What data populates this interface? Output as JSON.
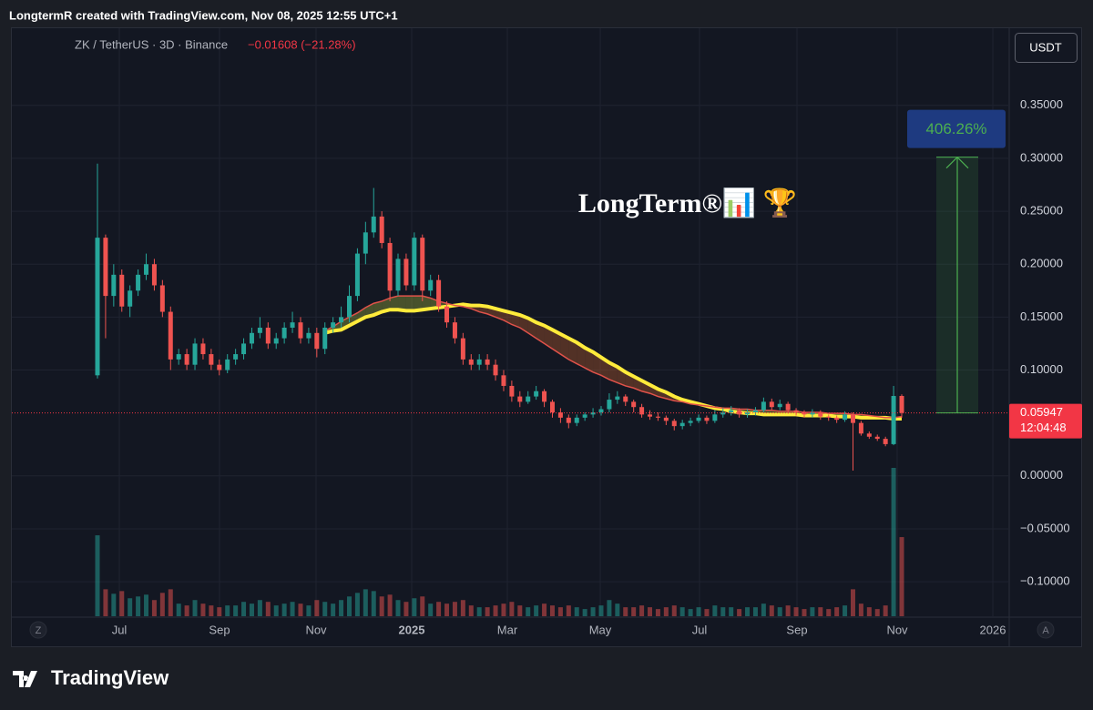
{
  "header": {
    "caption": "LongtermR created with TradingView.com, Nov 08, 2025 12:55 UTC+1"
  },
  "chart_data": {
    "type": "candlestick",
    "symbol": "ZK / TetherUS · 3D · Binance",
    "change": "−0.01608 (−21.28%)",
    "currency": "USDT",
    "watermark": "LongTerm®📊 🏆",
    "up_color": "#26a69a",
    "down_color": "#ef5350",
    "ohlc": [
      [
        0.095,
        0.295,
        0.092,
        0.225
      ],
      [
        0.225,
        0.228,
        0.13,
        0.17
      ],
      [
        0.17,
        0.2,
        0.16,
        0.19
      ],
      [
        0.19,
        0.195,
        0.155,
        0.16
      ],
      [
        0.16,
        0.18,
        0.15,
        0.175
      ],
      [
        0.175,
        0.195,
        0.17,
        0.19
      ],
      [
        0.19,
        0.21,
        0.185,
        0.2
      ],
      [
        0.2,
        0.205,
        0.175,
        0.18
      ],
      [
        0.18,
        0.185,
        0.15,
        0.155
      ],
      [
        0.155,
        0.16,
        0.1,
        0.11
      ],
      [
        0.11,
        0.12,
        0.105,
        0.115
      ],
      [
        0.115,
        0.12,
        0.1,
        0.105
      ],
      [
        0.105,
        0.13,
        0.1,
        0.125
      ],
      [
        0.125,
        0.13,
        0.11,
        0.115
      ],
      [
        0.115,
        0.12,
        0.1,
        0.105
      ],
      [
        0.105,
        0.11,
        0.095,
        0.1
      ],
      [
        0.1,
        0.115,
        0.097,
        0.11
      ],
      [
        0.11,
        0.12,
        0.105,
        0.115
      ],
      [
        0.115,
        0.13,
        0.11,
        0.125
      ],
      [
        0.125,
        0.14,
        0.12,
        0.135
      ],
      [
        0.135,
        0.15,
        0.13,
        0.14
      ],
      [
        0.14,
        0.145,
        0.12,
        0.125
      ],
      [
        0.125,
        0.135,
        0.12,
        0.13
      ],
      [
        0.13,
        0.145,
        0.125,
        0.14
      ],
      [
        0.14,
        0.155,
        0.135,
        0.145
      ],
      [
        0.145,
        0.15,
        0.125,
        0.13
      ],
      [
        0.13,
        0.14,
        0.125,
        0.135
      ],
      [
        0.135,
        0.14,
        0.112,
        0.12
      ],
      [
        0.12,
        0.145,
        0.115,
        0.14
      ],
      [
        0.14,
        0.15,
        0.135,
        0.145
      ],
      [
        0.145,
        0.16,
        0.14,
        0.15
      ],
      [
        0.15,
        0.18,
        0.145,
        0.17
      ],
      [
        0.17,
        0.215,
        0.165,
        0.21
      ],
      [
        0.21,
        0.24,
        0.2,
        0.23
      ],
      [
        0.23,
        0.272,
        0.225,
        0.245
      ],
      [
        0.245,
        0.25,
        0.215,
        0.22
      ],
      [
        0.22,
        0.225,
        0.165,
        0.175
      ],
      [
        0.175,
        0.21,
        0.17,
        0.205
      ],
      [
        0.205,
        0.21,
        0.175,
        0.18
      ],
      [
        0.18,
        0.23,
        0.175,
        0.225
      ],
      [
        0.225,
        0.228,
        0.165,
        0.175
      ],
      [
        0.175,
        0.19,
        0.17,
        0.185
      ],
      [
        0.185,
        0.19,
        0.155,
        0.16
      ],
      [
        0.16,
        0.165,
        0.14,
        0.145
      ],
      [
        0.145,
        0.15,
        0.125,
        0.13
      ],
      [
        0.13,
        0.135,
        0.105,
        0.11
      ],
      [
        0.11,
        0.115,
        0.1,
        0.105
      ],
      [
        0.105,
        0.115,
        0.1,
        0.11
      ],
      [
        0.11,
        0.115,
        0.1,
        0.105
      ],
      [
        0.105,
        0.11,
        0.09,
        0.095
      ],
      [
        0.095,
        0.1,
        0.08,
        0.085
      ],
      [
        0.085,
        0.09,
        0.07,
        0.075
      ],
      [
        0.075,
        0.08,
        0.065,
        0.07
      ],
      [
        0.07,
        0.08,
        0.068,
        0.075
      ],
      [
        0.075,
        0.085,
        0.072,
        0.08
      ],
      [
        0.08,
        0.082,
        0.065,
        0.07
      ],
      [
        0.07,
        0.072,
        0.055,
        0.06
      ],
      [
        0.06,
        0.064,
        0.05,
        0.055
      ],
      [
        0.055,
        0.058,
        0.045,
        0.05
      ],
      [
        0.05,
        0.058,
        0.047,
        0.055
      ],
      [
        0.055,
        0.06,
        0.052,
        0.058
      ],
      [
        0.058,
        0.064,
        0.055,
        0.06
      ],
      [
        0.06,
        0.066,
        0.057,
        0.063
      ],
      [
        0.063,
        0.078,
        0.06,
        0.072
      ],
      [
        0.072,
        0.08,
        0.068,
        0.075
      ],
      [
        0.075,
        0.077,
        0.066,
        0.07
      ],
      [
        0.07,
        0.072,
        0.06,
        0.065
      ],
      [
        0.065,
        0.068,
        0.055,
        0.058
      ],
      [
        0.058,
        0.062,
        0.053,
        0.056
      ],
      [
        0.056,
        0.06,
        0.052,
        0.055
      ],
      [
        0.055,
        0.057,
        0.048,
        0.052
      ],
      [
        0.052,
        0.054,
        0.043,
        0.047
      ],
      [
        0.047,
        0.053,
        0.044,
        0.05
      ],
      [
        0.05,
        0.055,
        0.047,
        0.052
      ],
      [
        0.052,
        0.058,
        0.05,
        0.055
      ],
      [
        0.055,
        0.057,
        0.049,
        0.052
      ],
      [
        0.052,
        0.062,
        0.05,
        0.058
      ],
      [
        0.058,
        0.064,
        0.055,
        0.06
      ],
      [
        0.06,
        0.066,
        0.057,
        0.062
      ],
      [
        0.062,
        0.064,
        0.055,
        0.058
      ],
      [
        0.058,
        0.063,
        0.055,
        0.06
      ],
      [
        0.06,
        0.065,
        0.057,
        0.062
      ],
      [
        0.062,
        0.074,
        0.06,
        0.07
      ],
      [
        0.07,
        0.073,
        0.062,
        0.065
      ],
      [
        0.065,
        0.072,
        0.062,
        0.068
      ],
      [
        0.068,
        0.07,
        0.059,
        0.062
      ],
      [
        0.062,
        0.064,
        0.057,
        0.06
      ],
      [
        0.06,
        0.062,
        0.055,
        0.058
      ],
      [
        0.058,
        0.063,
        0.055,
        0.06
      ],
      [
        0.06,
        0.062,
        0.053,
        0.056
      ],
      [
        0.056,
        0.058,
        0.052,
        0.055
      ],
      [
        0.055,
        0.057,
        0.05,
        0.053
      ],
      [
        0.053,
        0.061,
        0.051,
        0.058
      ],
      [
        0.058,
        0.06,
        0.005,
        0.05
      ],
      [
        0.05,
        0.052,
        0.038,
        0.04
      ],
      [
        0.04,
        0.042,
        0.035,
        0.037
      ],
      [
        0.037,
        0.039,
        0.033,
        0.035
      ],
      [
        0.035,
        0.037,
        0.028,
        0.03
      ],
      [
        0.03,
        0.085,
        0.029,
        0.0755
      ],
      [
        0.0755,
        0.077,
        0.055,
        0.05947
      ]
    ],
    "volume": [
      90,
      30,
      25,
      28,
      20,
      22,
      24,
      18,
      26,
      30,
      14,
      12,
      18,
      14,
      12,
      10,
      12,
      12,
      16,
      14,
      18,
      16,
      12,
      14,
      16,
      14,
      12,
      18,
      16,
      14,
      18,
      22,
      26,
      30,
      28,
      22,
      24,
      18,
      16,
      20,
      22,
      14,
      16,
      14,
      16,
      18,
      12,
      10,
      10,
      12,
      14,
      16,
      12,
      10,
      12,
      14,
      12,
      10,
      12,
      10,
      8,
      10,
      12,
      18,
      14,
      10,
      10,
      12,
      10,
      8,
      10,
      12,
      10,
      8,
      10,
      8,
      12,
      10,
      10,
      8,
      10,
      10,
      14,
      12,
      10,
      12,
      10,
      8,
      10,
      10,
      8,
      10,
      12,
      30,
      14,
      10,
      8,
      12,
      165,
      88
    ],
    "overlays": [
      {
        "color": "#ffeb3b",
        "values": [
          null,
          null,
          null,
          null,
          null,
          null,
          null,
          null,
          null,
          null,
          null,
          null,
          null,
          null,
          null,
          null,
          null,
          null,
          null,
          null,
          null,
          null,
          null,
          null,
          null,
          null,
          null,
          null,
          0.135,
          0.137,
          0.138,
          0.142,
          0.146,
          0.15,
          0.152,
          0.155,
          0.157,
          0.157,
          0.156,
          0.156,
          0.157,
          0.158,
          0.159,
          0.16,
          0.161,
          0.162,
          0.161,
          0.161,
          0.16,
          0.158,
          0.156,
          0.154,
          0.152,
          0.149,
          0.145,
          0.142,
          0.138,
          0.134,
          0.13,
          0.126,
          0.121,
          0.117,
          0.112,
          0.107,
          0.103,
          0.098,
          0.094,
          0.09,
          0.086,
          0.082,
          0.079,
          0.075,
          0.072,
          0.07,
          0.068,
          0.066,
          0.064,
          0.063,
          0.061,
          0.06,
          0.059,
          0.059,
          0.058,
          0.058,
          0.058,
          0.058,
          0.058,
          0.057,
          0.057,
          0.057,
          0.057,
          0.056,
          0.056,
          0.056,
          0.055,
          0.055,
          0.055,
          0.055,
          0.054,
          0.054
        ]
      },
      {
        "color": "#e0524a",
        "values": [
          null,
          null,
          null,
          null,
          null,
          null,
          null,
          null,
          null,
          null,
          null,
          null,
          null,
          null,
          null,
          null,
          null,
          null,
          null,
          null,
          null,
          null,
          null,
          null,
          null,
          null,
          null,
          null,
          0.137,
          0.141,
          0.146,
          0.15,
          0.154,
          0.159,
          0.163,
          0.165,
          0.168,
          0.17,
          0.17,
          0.17,
          0.17,
          0.168,
          0.165,
          0.163,
          0.161,
          0.16,
          0.158,
          0.155,
          0.153,
          0.15,
          0.147,
          0.143,
          0.14,
          0.135,
          0.13,
          0.125,
          0.12,
          0.115,
          0.11,
          0.106,
          0.102,
          0.098,
          0.095,
          0.091,
          0.088,
          0.085,
          0.083,
          0.08,
          0.078,
          0.075,
          0.073,
          0.071,
          0.07,
          0.068,
          0.067,
          0.066,
          0.065,
          0.064,
          0.064,
          0.063,
          0.063,
          0.062,
          0.062,
          0.062,
          0.061,
          0.061,
          0.061,
          0.06,
          0.06,
          0.06,
          0.059,
          0.059,
          0.059,
          0.058,
          0.058,
          0.057,
          0.056,
          0.055,
          0.055,
          0.056
        ]
      }
    ],
    "ylim": [
      -0.1326,
      0.4229
    ],
    "yticks": [
      {
        "value": 0.35,
        "label": "0.35000"
      },
      {
        "value": 0.3,
        "label": "0.30000"
      },
      {
        "value": 0.25,
        "label": "0.25000"
      },
      {
        "value": 0.2,
        "label": "0.20000"
      },
      {
        "value": 0.15,
        "label": "0.15000"
      },
      {
        "value": 0.1,
        "label": "0.10000"
      },
      {
        "value": 0,
        "label": "0.00000"
      },
      {
        "value": -0.05,
        "label": "−0.05000"
      },
      {
        "value": -0.1,
        "label": "−0.10000"
      }
    ],
    "xticks": [
      "Jul",
      "Sep",
      "Nov",
      "2025",
      "Mar",
      "May",
      "Jul",
      "Sep",
      "Nov",
      "2026"
    ],
    "grid": true,
    "last_price": 0.05947,
    "countdown": "12:04:48",
    "measure": {
      "from": 0.05947,
      "to": 0.301075,
      "label": "406.26%"
    },
    "scale_left": "Z",
    "scale_right": "A"
  },
  "footer": {
    "brand": "TradingView"
  }
}
